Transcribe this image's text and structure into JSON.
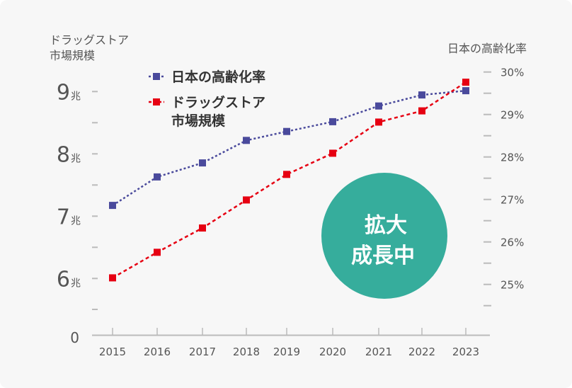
{
  "chart_data": {
    "type": "line",
    "left_axis_title": [
      "ドラッグストア",
      "市場規模"
    ],
    "right_axis_title": "日本の高齢化率",
    "categories": [
      "2015",
      "2016",
      "2017",
      "2018",
      "2019",
      "2020",
      "2021",
      "2022",
      "2023"
    ],
    "left_axis": {
      "ylim": [
        5.5,
        9.5
      ],
      "tick_labels": [
        {
          "value": 9,
          "num": "9",
          "unit": "兆"
        },
        {
          "value": 8,
          "num": "8",
          "unit": "兆"
        },
        {
          "value": 7,
          "num": "7",
          "unit": "兆"
        },
        {
          "value": 6,
          "num": "6",
          "unit": "兆"
        }
      ],
      "broken_axis_zero_label": "0"
    },
    "right_axis": {
      "ylim": [
        24.5,
        30
      ],
      "tick_labels": [
        "30%",
        "29%",
        "28%",
        "27%",
        "26%",
        "25%"
      ]
    },
    "series": [
      {
        "name": "日本の高齢化率",
        "axis": "right",
        "color": "#4a4a9c",
        "style": "dotted",
        "marker": "square",
        "values": [
          26.86,
          27.53,
          27.86,
          28.39,
          28.6,
          28.83,
          29.2,
          29.46,
          29.56
        ]
      },
      {
        "name": "ドラッグストア市場規模",
        "legend_lines": [
          "ドラッグストア",
          "市場規模"
        ],
        "axis": "left",
        "color": "#e60012",
        "style": "dashed",
        "marker": "square",
        "values": [
          6.01,
          6.42,
          6.81,
          7.26,
          7.67,
          8.01,
          8.51,
          8.69,
          9.15
        ]
      }
    ],
    "legend_placement": "top-left",
    "grid": false,
    "annotation": {
      "lines": [
        "拡大",
        "成長中"
      ],
      "color": "#36ad9c"
    }
  }
}
